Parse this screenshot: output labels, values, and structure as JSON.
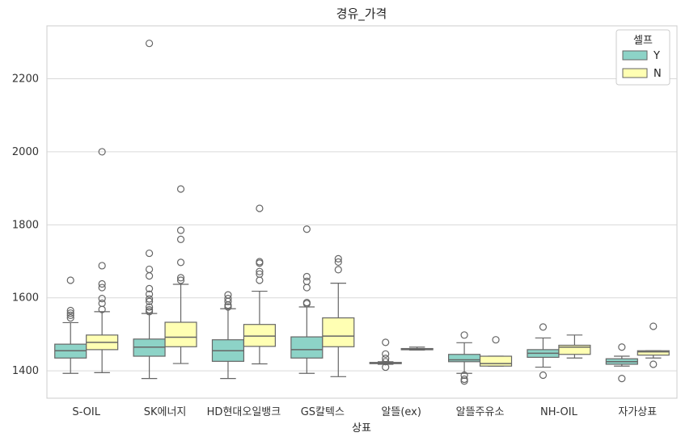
{
  "chart_data": {
    "type": "box",
    "title": "경유_가격",
    "xlabel": "상표",
    "ylabel": "",
    "ylim": [
      1325,
      2345
    ],
    "yticks": [
      1400,
      1600,
      1800,
      2000,
      2200
    ],
    "grid": "horizontal",
    "legend": {
      "title": "셀프",
      "position": "top-right"
    },
    "categories": [
      "S-OIL",
      "SK에너지",
      "HD현대오일뱅크",
      "GS칼텍스",
      "알뜰(ex)",
      "알뜰주유소",
      "NH-OIL",
      "자가상표"
    ],
    "series": [
      {
        "name": "Y",
        "color": "#8dd3c7",
        "boxes": [
          {
            "whisker_low": 1393,
            "q1": 1435,
            "median": 1455,
            "q3": 1473,
            "whisker_high": 1532,
            "outliers": [
              1545,
              1552,
              1558,
              1565,
              1648
            ]
          },
          {
            "whisker_low": 1379,
            "q1": 1440,
            "median": 1465,
            "q3": 1487,
            "whisker_high": 1557,
            "outliers": [
              1562,
              1567,
              1575,
              1590,
              1597,
              1610,
              1625,
              1660,
              1678,
              1722,
              2297
            ]
          },
          {
            "whisker_low": 1379,
            "q1": 1426,
            "median": 1455,
            "q3": 1485,
            "whisker_high": 1570,
            "outliers": [
              1575,
              1580,
              1590,
              1598,
              1608
            ]
          },
          {
            "whisker_low": 1393,
            "q1": 1435,
            "median": 1458,
            "q3": 1493,
            "whisker_high": 1575,
            "outliers": [
              1584,
              1587,
              1628,
              1645,
              1658,
              1788
            ]
          },
          {
            "whisker_low": 1418,
            "q1": 1420,
            "median": 1421,
            "q3": 1423,
            "whisker_high": 1425,
            "outliers": [
              1410,
              1425,
              1434,
              1446,
              1478
            ]
          },
          {
            "whisker_low": 1393,
            "q1": 1425,
            "median": 1430,
            "q3": 1445,
            "whisker_high": 1477,
            "outliers": [
              1372,
              1377,
              1388,
              1498
            ]
          },
          {
            "whisker_low": 1410,
            "q1": 1437,
            "median": 1448,
            "q3": 1458,
            "whisker_high": 1490,
            "outliers": [
              1388,
              1520
            ]
          },
          {
            "whisker_low": 1413,
            "q1": 1418,
            "median": 1425,
            "q3": 1433,
            "whisker_high": 1440,
            "outliers": [
              1379,
              1465
            ]
          }
        ]
      },
      {
        "name": "N",
        "color": "#ffffb3",
        "boxes": [
          {
            "whisker_low": 1395,
            "q1": 1458,
            "median": 1478,
            "q3": 1498,
            "whisker_high": 1562,
            "outliers": [
              1568,
              1585,
              1598,
              1628,
              1638,
              1688,
              2000
            ]
          },
          {
            "whisker_low": 1420,
            "q1": 1466,
            "median": 1492,
            "q3": 1533,
            "whisker_high": 1637,
            "outliers": [
              1648,
              1655,
              1697,
              1760,
              1785,
              1898
            ]
          },
          {
            "whisker_low": 1419,
            "q1": 1467,
            "median": 1495,
            "q3": 1527,
            "whisker_high": 1618,
            "outliers": [
              1648,
              1665,
              1672,
              1695,
              1699,
              1845
            ]
          },
          {
            "whisker_low": 1384,
            "q1": 1466,
            "median": 1495,
            "q3": 1545,
            "whisker_high": 1640,
            "outliers": [
              1677,
              1698,
              1707
            ]
          },
          {
            "whisker_low": 1457,
            "q1": 1458,
            "median": 1460,
            "q3": 1461,
            "whisker_high": 1465,
            "outliers": []
          },
          {
            "whisker_low": 1413,
            "q1": 1413,
            "median": 1420,
            "q3": 1440,
            "whisker_high": 1440,
            "outliers": [
              1485
            ]
          },
          {
            "whisker_low": 1435,
            "q1": 1445,
            "median": 1465,
            "q3": 1470,
            "whisker_high": 1498,
            "outliers": []
          },
          {
            "whisker_low": 1435,
            "q1": 1443,
            "median": 1452,
            "q3": 1455,
            "whisker_high": 1455,
            "outliers": [
              1418,
              1522
            ]
          }
        ]
      }
    ]
  }
}
